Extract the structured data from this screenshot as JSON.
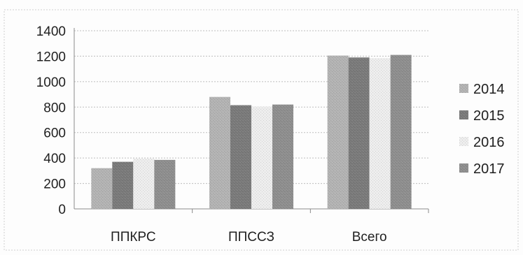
{
  "chart_data": {
    "type": "bar",
    "categories": [
      "ППКРС",
      "ППССЗ",
      "Всего"
    ],
    "series": [
      {
        "name": "2014",
        "values": [
          320,
          880,
          1205
        ],
        "color": "#b3b3b3"
      },
      {
        "name": "2015",
        "values": [
          370,
          815,
          1190
        ],
        "color": "#7a7a7a"
      },
      {
        "name": "2016",
        "values": [
          395,
          805,
          1185
        ],
        "color": "#ededed"
      },
      {
        "name": "2017",
        "values": [
          385,
          820,
          1210
        ],
        "color": "#8e8e8e"
      }
    ],
    "y_ticks": [
      "0",
      "200",
      "400",
      "600",
      "800",
      "1000",
      "1200",
      "1400"
    ],
    "ylim": [
      0,
      1400
    ],
    "grid": true,
    "legend_position": "right"
  }
}
